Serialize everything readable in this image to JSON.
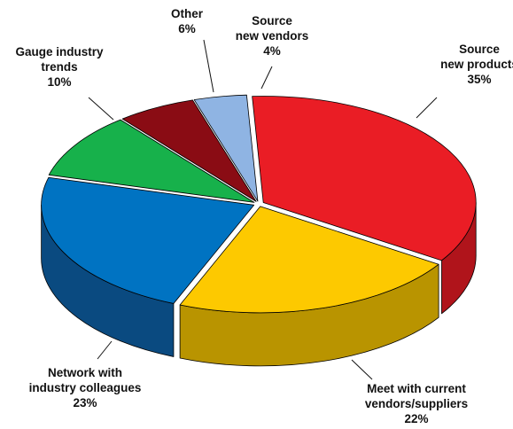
{
  "chart_data": {
    "type": "pie",
    "style": "3d-exploded-tilted",
    "legend": "none",
    "slices": [
      {
        "name": "Source new products",
        "lines": [
          "Source",
          "new products"
        ],
        "value": 35,
        "label": "35%",
        "color": "#ea1d25",
        "side_color": "#b0141b"
      },
      {
        "name": "Meet with current vendors/suppliers",
        "lines": [
          "Meet with current",
          "vendors/suppliers"
        ],
        "value": 22,
        "label": "22%",
        "color": "#fdc900",
        "side_color": "#b99400"
      },
      {
        "name": "Network with industry colleagues",
        "lines": [
          "Network with",
          "industry colleagues"
        ],
        "value": 23,
        "label": "23%",
        "color": "#0073c2",
        "side_color": "#0a4a80"
      },
      {
        "name": "Gauge industry trends",
        "lines": [
          "Gauge industry",
          "trends"
        ],
        "value": 10,
        "label": "10%",
        "color": "#17b14b",
        "side_color": "#0f7a33"
      },
      {
        "name": "Other",
        "lines": [
          "Other"
        ],
        "value": 6,
        "label": "6%",
        "color": "#8a0c14",
        "side_color": "#5c070c"
      },
      {
        "name": "Source new vendors",
        "lines": [
          "Source",
          "new vendors"
        ],
        "value": 4,
        "label": "4%",
        "color": "#8fb4e3",
        "side_color": "#5c84b8"
      }
    ]
  }
}
